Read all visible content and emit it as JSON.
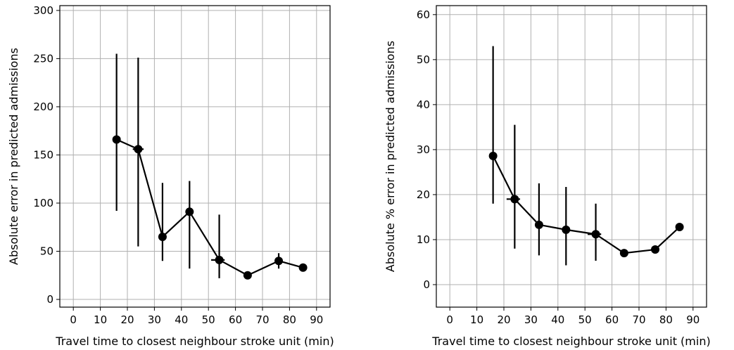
{
  "chart_data": [
    {
      "type": "line",
      "title": "",
      "xlabel": "Travel time to closest neighbour stroke unit (min)",
      "ylabel": "Absolute error in predicted admissions",
      "xlim": [
        -5,
        95
      ],
      "ylim": [
        -8,
        305
      ],
      "xticks": [
        0,
        10,
        20,
        30,
        40,
        50,
        60,
        70,
        80,
        90
      ],
      "yticks": [
        0,
        50,
        100,
        150,
        200,
        250,
        300
      ],
      "grid": true,
      "legend": "none",
      "series": [
        {
          "x": [
            16,
            24,
            33,
            43,
            54,
            64.5,
            76,
            85
          ],
          "y": [
            166,
            156,
            65,
            91,
            41,
            25,
            40,
            33
          ],
          "ylow": [
            92,
            55,
            40,
            32,
            22,
            22,
            32,
            30
          ],
          "yhigh": [
            255,
            251,
            121,
            123,
            88,
            28,
            48,
            36
          ],
          "xlow": [
            16,
            22,
            33,
            42,
            51,
            64.5,
            76,
            85
          ],
          "xhigh": [
            16,
            26,
            33,
            44,
            56,
            64.5,
            76,
            85
          ]
        }
      ]
    },
    {
      "type": "line",
      "title": "",
      "xlabel": "Travel time to closest neighbour stroke unit (min)",
      "ylabel": "Absolute % error in predicted admissions",
      "xlim": [
        -5,
        95
      ],
      "ylim": [
        -5,
        62
      ],
      "xticks": [
        0,
        10,
        20,
        30,
        40,
        50,
        60,
        70,
        80,
        90
      ],
      "yticks": [
        0,
        10,
        20,
        30,
        40,
        50,
        60
      ],
      "grid": true,
      "legend": "none",
      "series": [
        {
          "x": [
            16,
            24,
            33,
            43,
            54,
            64.5,
            76,
            85
          ],
          "y": [
            28.6,
            19,
            13.3,
            12.2,
            11.2,
            7,
            7.8,
            12.8
          ],
          "ylow": [
            18,
            8,
            6.5,
            4.3,
            5.3,
            6.6,
            7.5,
            12.4
          ],
          "yhigh": [
            53,
            35.5,
            22.5,
            21.7,
            18,
            7.4,
            8.1,
            13.2
          ],
          "xlow": [
            16,
            21,
            33,
            42,
            51,
            64.5,
            76,
            85
          ],
          "xhigh": [
            16,
            26,
            33,
            44,
            56,
            64.5,
            76,
            85
          ]
        }
      ]
    }
  ]
}
